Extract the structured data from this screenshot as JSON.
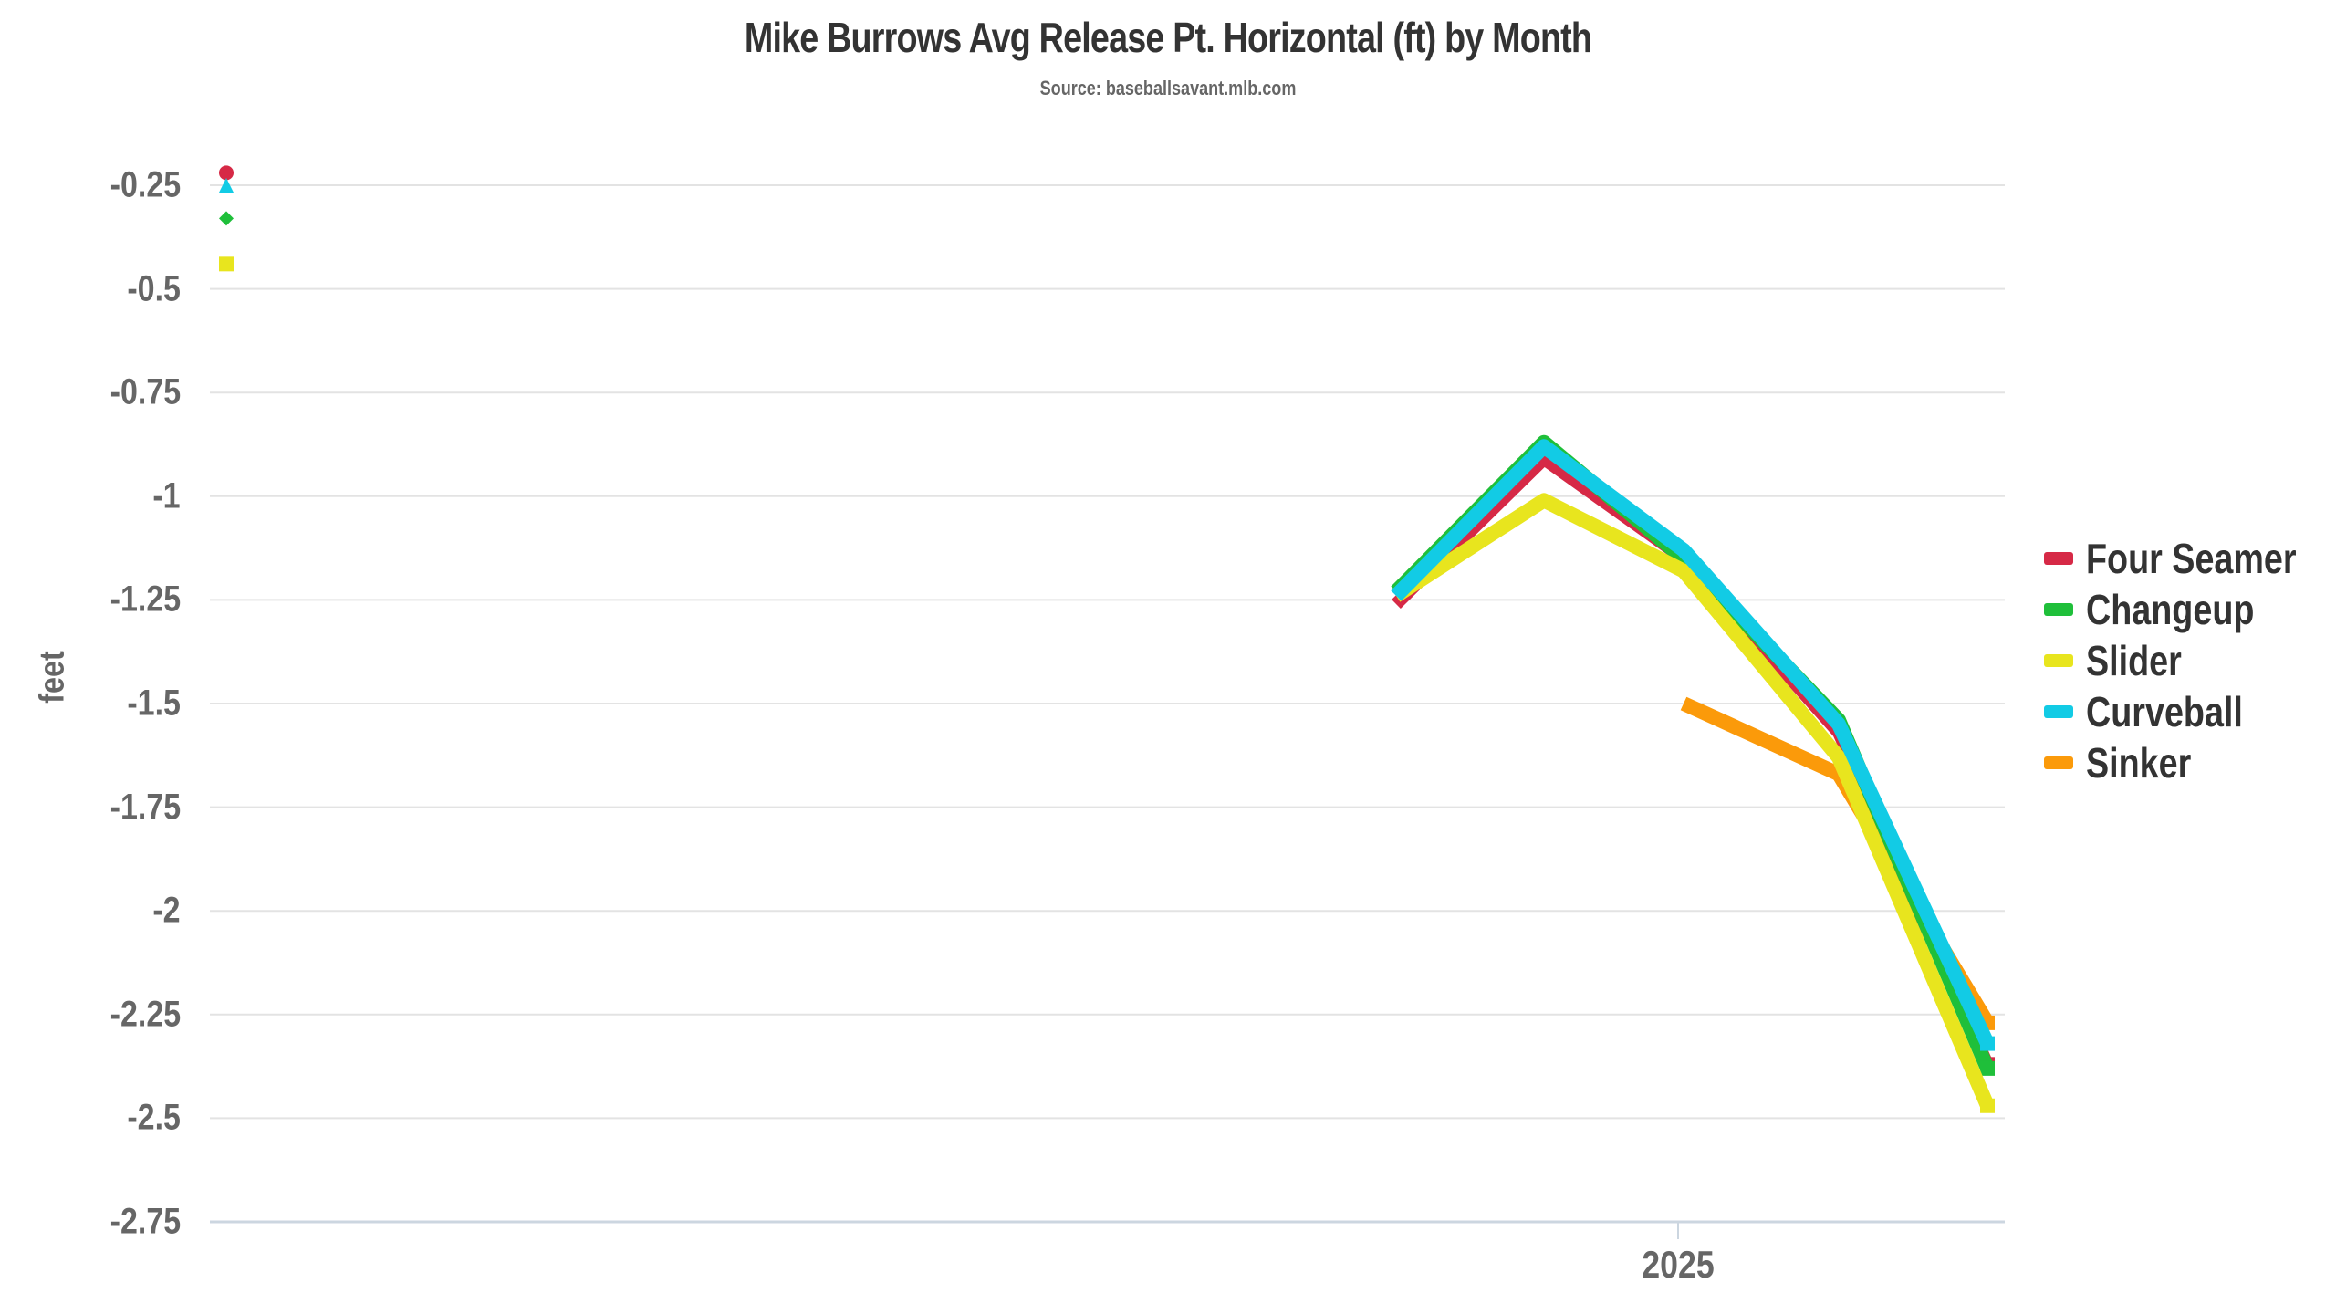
{
  "chart_data": {
    "type": "line",
    "title": "Mike Burrows Avg Release Pt. Horizontal (ft) by Month",
    "subtitle": "Source: baseballsavant.mlb.com",
    "xlabel": "",
    "ylabel": "feet",
    "ylim": [
      -2.75,
      -0.25
    ],
    "yticks": [
      "-0.25",
      "-0.5",
      "-0.75",
      "-1",
      "-1.25",
      "-1.5",
      "-1.75",
      "-2",
      "-2.25",
      "-2.5",
      "-2.75"
    ],
    "xticks": [
      {
        "label": "2025",
        "index": 2
      }
    ],
    "grid": true,
    "legend_position": "right",
    "x": [
      "m0",
      "m1",
      "m2",
      "m3",
      "m4"
    ],
    "series": [
      {
        "name": "Four Seamer",
        "color": "#d62946",
        "marker": "circle",
        "values": [
          -1.26,
          -0.91,
          -1.15,
          -1.57,
          -2.37
        ],
        "early_point": -0.22
      },
      {
        "name": "Changeup",
        "color": "#1fbf3a",
        "marker": "diamond",
        "values": [
          -1.23,
          -0.87,
          -1.15,
          -1.54,
          -2.38
        ],
        "early_point": -0.33
      },
      {
        "name": "Slider",
        "color": "#e8e51e",
        "marker": "square",
        "values": [
          -1.24,
          -1.01,
          -1.18,
          -1.63,
          -2.47
        ],
        "early_point": -0.44
      },
      {
        "name": "Curveball",
        "color": "#12cbe5",
        "marker": "triangle",
        "values": [
          -1.24,
          -0.88,
          -1.13,
          -1.55,
          -2.32
        ],
        "early_point": -0.25
      },
      {
        "name": "Sinker",
        "color": "#fb9a0a",
        "marker": "square",
        "values": [
          null,
          null,
          -1.5,
          -1.67,
          -2.27
        ],
        "early_point": null
      }
    ]
  }
}
